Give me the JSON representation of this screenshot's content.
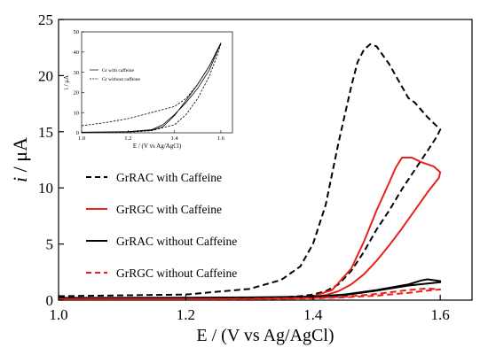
{
  "chart_data": [
    {
      "type": "line",
      "xlabel": "E / (V vs Ag/AgCl)",
      "ylabel_italic": "i",
      "ylabel_unit": " / μA",
      "xlim": [
        1.0,
        1.65
      ],
      "ylim": [
        0,
        25
      ],
      "xticks": [
        "1.0",
        "1.2",
        "1.4",
        "1.6"
      ],
      "xtick_values": [
        1.0,
        1.2,
        1.4,
        1.6
      ],
      "yticks": [
        "0",
        "5",
        "10",
        "15",
        "20",
        "25"
      ],
      "ytick_values": [
        0,
        5,
        10,
        15,
        20,
        25
      ],
      "legend_position": "middle-left",
      "series": [
        {
          "name": "GrRAC with Caffeine",
          "color": "#000000",
          "dash": "dashed",
          "x": [
            1.0,
            1.2,
            1.3,
            1.35,
            1.38,
            1.4,
            1.42,
            1.44,
            1.46,
            1.47,
            1.48,
            1.49,
            1.5,
            1.52,
            1.54,
            1.55,
            1.56,
            1.58,
            1.6,
            1.595,
            1.58,
            1.56,
            1.54,
            1.52,
            1.5,
            1.48,
            1.46,
            1.44,
            1.42,
            1.4,
            1.38,
            1.35,
            1.3,
            1.2,
            1.0
          ],
          "y": [
            0.35,
            0.5,
            1.0,
            1.8,
            3.0,
            5.0,
            8.5,
            14.0,
            19.0,
            21.2,
            22.3,
            22.8,
            22.6,
            21.0,
            19.0,
            18.0,
            17.6,
            16.3,
            15.2,
            14.6,
            13.3,
            11.6,
            9.9,
            8.0,
            6.3,
            4.3,
            2.6,
            1.4,
            0.8,
            0.5,
            0.35,
            0.25,
            0.2,
            0.18,
            0.15
          ]
        },
        {
          "name": "GrRGC with Caffeine",
          "color": "#e8221b",
          "dash": "solid",
          "x": [
            1.35,
            1.4,
            1.43,
            1.46,
            1.48,
            1.5,
            1.52,
            1.53,
            1.54,
            1.555,
            1.57,
            1.59,
            1.6,
            1.598,
            1.58,
            1.56,
            1.54,
            1.52,
            1.5,
            1.48,
            1.46,
            1.44,
            1.42,
            1.4,
            1.35
          ],
          "y": [
            0.15,
            0.35,
            0.9,
            2.8,
            5.2,
            8.0,
            10.5,
            11.8,
            12.7,
            12.7,
            12.3,
            11.9,
            11.4,
            10.9,
            9.6,
            8.0,
            6.4,
            4.9,
            3.5,
            2.3,
            1.4,
            0.8,
            0.45,
            0.25,
            0.12
          ]
        },
        {
          "name": "GrRAC without Caffeine",
          "color": "#000000",
          "dash": "solid",
          "x": [
            1.0,
            1.2,
            1.3,
            1.4,
            1.45,
            1.5,
            1.55,
            1.57,
            1.58,
            1.6,
            1.6,
            1.55,
            1.5,
            1.45,
            1.4,
            1.3,
            1.2,
            1.0
          ],
          "y": [
            0.2,
            0.22,
            0.25,
            0.32,
            0.5,
            0.9,
            1.4,
            1.75,
            1.85,
            1.7,
            1.6,
            1.3,
            0.85,
            0.45,
            0.3,
            0.25,
            0.22,
            0.2
          ]
        },
        {
          "name": "GrRGC without Caffeine",
          "color": "#e8221b",
          "dash": "dashed",
          "x": [
            1.0,
            1.2,
            1.3,
            1.4,
            1.45,
            1.5,
            1.55,
            1.57,
            1.58,
            1.6,
            1.58,
            1.55,
            1.5,
            1.45,
            1.4,
            1.3,
            1.2,
            1.0
          ],
          "y": [
            0.1,
            0.1,
            0.12,
            0.2,
            0.3,
            0.55,
            0.9,
            1.0,
            1.05,
            0.95,
            0.85,
            0.65,
            0.4,
            0.25,
            0.15,
            0.1,
            0.1,
            0.1
          ]
        }
      ]
    },
    {
      "type": "line",
      "xlabel": "E / (V vs Ag/AgCl)",
      "ylabel": "i / μA",
      "xlim": [
        1.0,
        1.65
      ],
      "ylim": [
        0,
        50
      ],
      "xticks": [
        "1.0",
        "1.2",
        "1.4",
        "1.6"
      ],
      "xtick_values": [
        1.0,
        1.2,
        1.4,
        1.6
      ],
      "yticks": [
        "0",
        "10",
        "20",
        "30",
        "40",
        "50"
      ],
      "ytick_values": [
        0,
        10,
        20,
        30,
        40,
        50
      ],
      "legend_position": "middle-center",
      "series": [
        {
          "name": "Gr with caffeine",
          "color": "#000000",
          "dash": "solid",
          "x": [
            1.0,
            1.2,
            1.3,
            1.35,
            1.4,
            1.45,
            1.5,
            1.55,
            1.6,
            1.58,
            1.55,
            1.5,
            1.45,
            1.42,
            1.4,
            1.35,
            1.3,
            1.2,
            1.0
          ],
          "y": [
            0.3,
            0.6,
            1.5,
            4.0,
            9.0,
            15.0,
            22.0,
            31.0,
            44.5,
            40.0,
            33.0,
            24.0,
            16.0,
            11.5,
            8.5,
            3.0,
            1.2,
            0.5,
            0.3
          ]
        },
        {
          "name": "Gr without caffeine",
          "color": "#000000",
          "dash": "dashed",
          "x": [
            1.0,
            1.1,
            1.2,
            1.3,
            1.35,
            1.4,
            1.45,
            1.5,
            1.55,
            1.6,
            1.58,
            1.55,
            1.5,
            1.45,
            1.4,
            1.3,
            1.2,
            1.0
          ],
          "y": [
            3.5,
            5.0,
            7.0,
            10.0,
            11.5,
            13.0,
            17.0,
            24.0,
            33.0,
            44.0,
            37.0,
            28.0,
            17.0,
            9.0,
            4.0,
            1.0,
            0.3,
            0.2
          ]
        }
      ]
    }
  ]
}
